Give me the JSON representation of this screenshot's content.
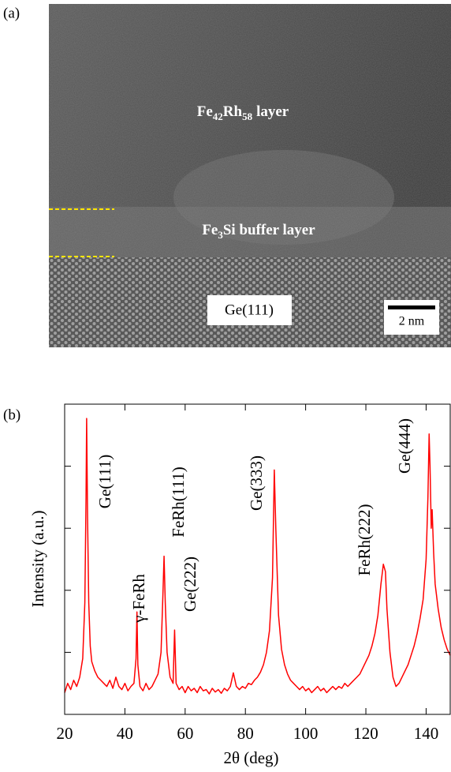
{
  "panel_a": {
    "label": "(a)",
    "top_layer": [
      "Fe",
      "42",
      "Rh",
      "58",
      "layer"
    ],
    "buffer_layer": [
      "Fe",
      "3",
      "Si buffer layer"
    ],
    "substrate": "Ge(111)",
    "scale_bar": "2 nm"
  },
  "chart_data": {
    "type": "line",
    "panel_label": "(b)",
    "x_label": "2θ (deg)",
    "y_label": "Intensity (a.u.)",
    "color": "#ff0000",
    "xlim": [
      20,
      148
    ],
    "xticks": [
      20,
      40,
      60,
      80,
      100,
      120,
      140
    ],
    "ylim": [
      0,
      5
    ],
    "yticks": [
      1,
      2,
      3,
      4
    ],
    "annotations": [
      "Ge(111)",
      "γ-FeRh",
      "FeRh(111)",
      "Ge(222)",
      "Ge(333)",
      "FeRh(222)",
      "Ge(444)"
    ],
    "x": [
      20,
      21,
      22,
      23,
      24,
      25,
      26,
      26.7,
      27.1,
      27.3,
      27.6,
      28,
      28.5,
      29,
      30,
      31,
      32,
      33,
      34,
      35,
      36,
      37,
      38,
      39,
      40,
      41,
      42,
      43,
      43.7,
      44,
      44.3,
      45,
      46,
      47,
      48,
      49,
      50,
      51,
      52,
      52.6,
      53,
      53.4,
      54,
      55,
      56,
      56.5,
      57,
      58,
      59,
      60,
      61,
      62,
      63,
      64,
      65,
      66,
      67,
      68,
      69,
      70,
      71,
      72,
      73,
      74,
      75,
      76,
      77,
      78,
      79,
      80,
      81,
      82,
      83,
      84,
      85,
      86,
      87,
      88,
      89,
      89.6,
      90.1,
      91,
      92,
      93,
      94,
      95,
      96,
      97,
      98,
      99,
      100,
      101,
      102,
      103,
      104,
      105,
      106,
      107,
      108,
      109,
      110,
      111,
      112,
      113,
      114,
      115,
      116,
      117,
      118,
      119,
      120,
      121,
      122,
      123,
      124,
      125,
      125.8,
      126.5,
      127,
      128,
      129,
      130,
      131,
      132,
      133,
      134,
      135,
      136,
      137,
      138,
      139,
      140,
      140.6,
      141,
      141.3,
      141.7,
      142,
      142.5,
      143,
      144,
      145,
      146,
      147,
      148
    ],
    "values": [
      0.35,
      0.5,
      0.4,
      0.55,
      0.45,
      0.6,
      0.9,
      1.8,
      3.5,
      4.77,
      3.2,
      1.8,
      1.1,
      0.85,
      0.7,
      0.6,
      0.55,
      0.5,
      0.45,
      0.55,
      0.42,
      0.6,
      0.45,
      0.4,
      0.5,
      0.38,
      0.45,
      0.5,
      0.9,
      1.65,
      0.8,
      0.45,
      0.38,
      0.5,
      0.4,
      0.45,
      0.55,
      0.65,
      1.0,
      1.9,
      2.55,
      1.8,
      1.0,
      0.6,
      0.5,
      1.36,
      0.5,
      0.4,
      0.45,
      0.35,
      0.45,
      0.38,
      0.42,
      0.35,
      0.45,
      0.38,
      0.4,
      0.33,
      0.42,
      0.36,
      0.4,
      0.34,
      0.42,
      0.38,
      0.45,
      0.67,
      0.45,
      0.4,
      0.45,
      0.42,
      0.5,
      0.48,
      0.55,
      0.6,
      0.68,
      0.8,
      1.0,
      1.35,
      2.2,
      3.94,
      3.0,
      1.6,
      1.05,
      0.8,
      0.65,
      0.55,
      0.5,
      0.45,
      0.4,
      0.45,
      0.38,
      0.42,
      0.35,
      0.4,
      0.45,
      0.38,
      0.42,
      0.35,
      0.4,
      0.45,
      0.4,
      0.45,
      0.42,
      0.5,
      0.45,
      0.5,
      0.55,
      0.6,
      0.65,
      0.75,
      0.85,
      0.95,
      1.1,
      1.3,
      1.6,
      2.1,
      2.42,
      2.3,
      1.7,
      1.0,
      0.6,
      0.45,
      0.5,
      0.6,
      0.7,
      0.8,
      0.95,
      1.1,
      1.3,
      1.55,
      1.85,
      2.5,
      3.5,
      4.52,
      4.0,
      3.0,
      3.3,
      2.6,
      2.1,
      1.7,
      1.4,
      1.2,
      1.05,
      0.95
    ]
  }
}
